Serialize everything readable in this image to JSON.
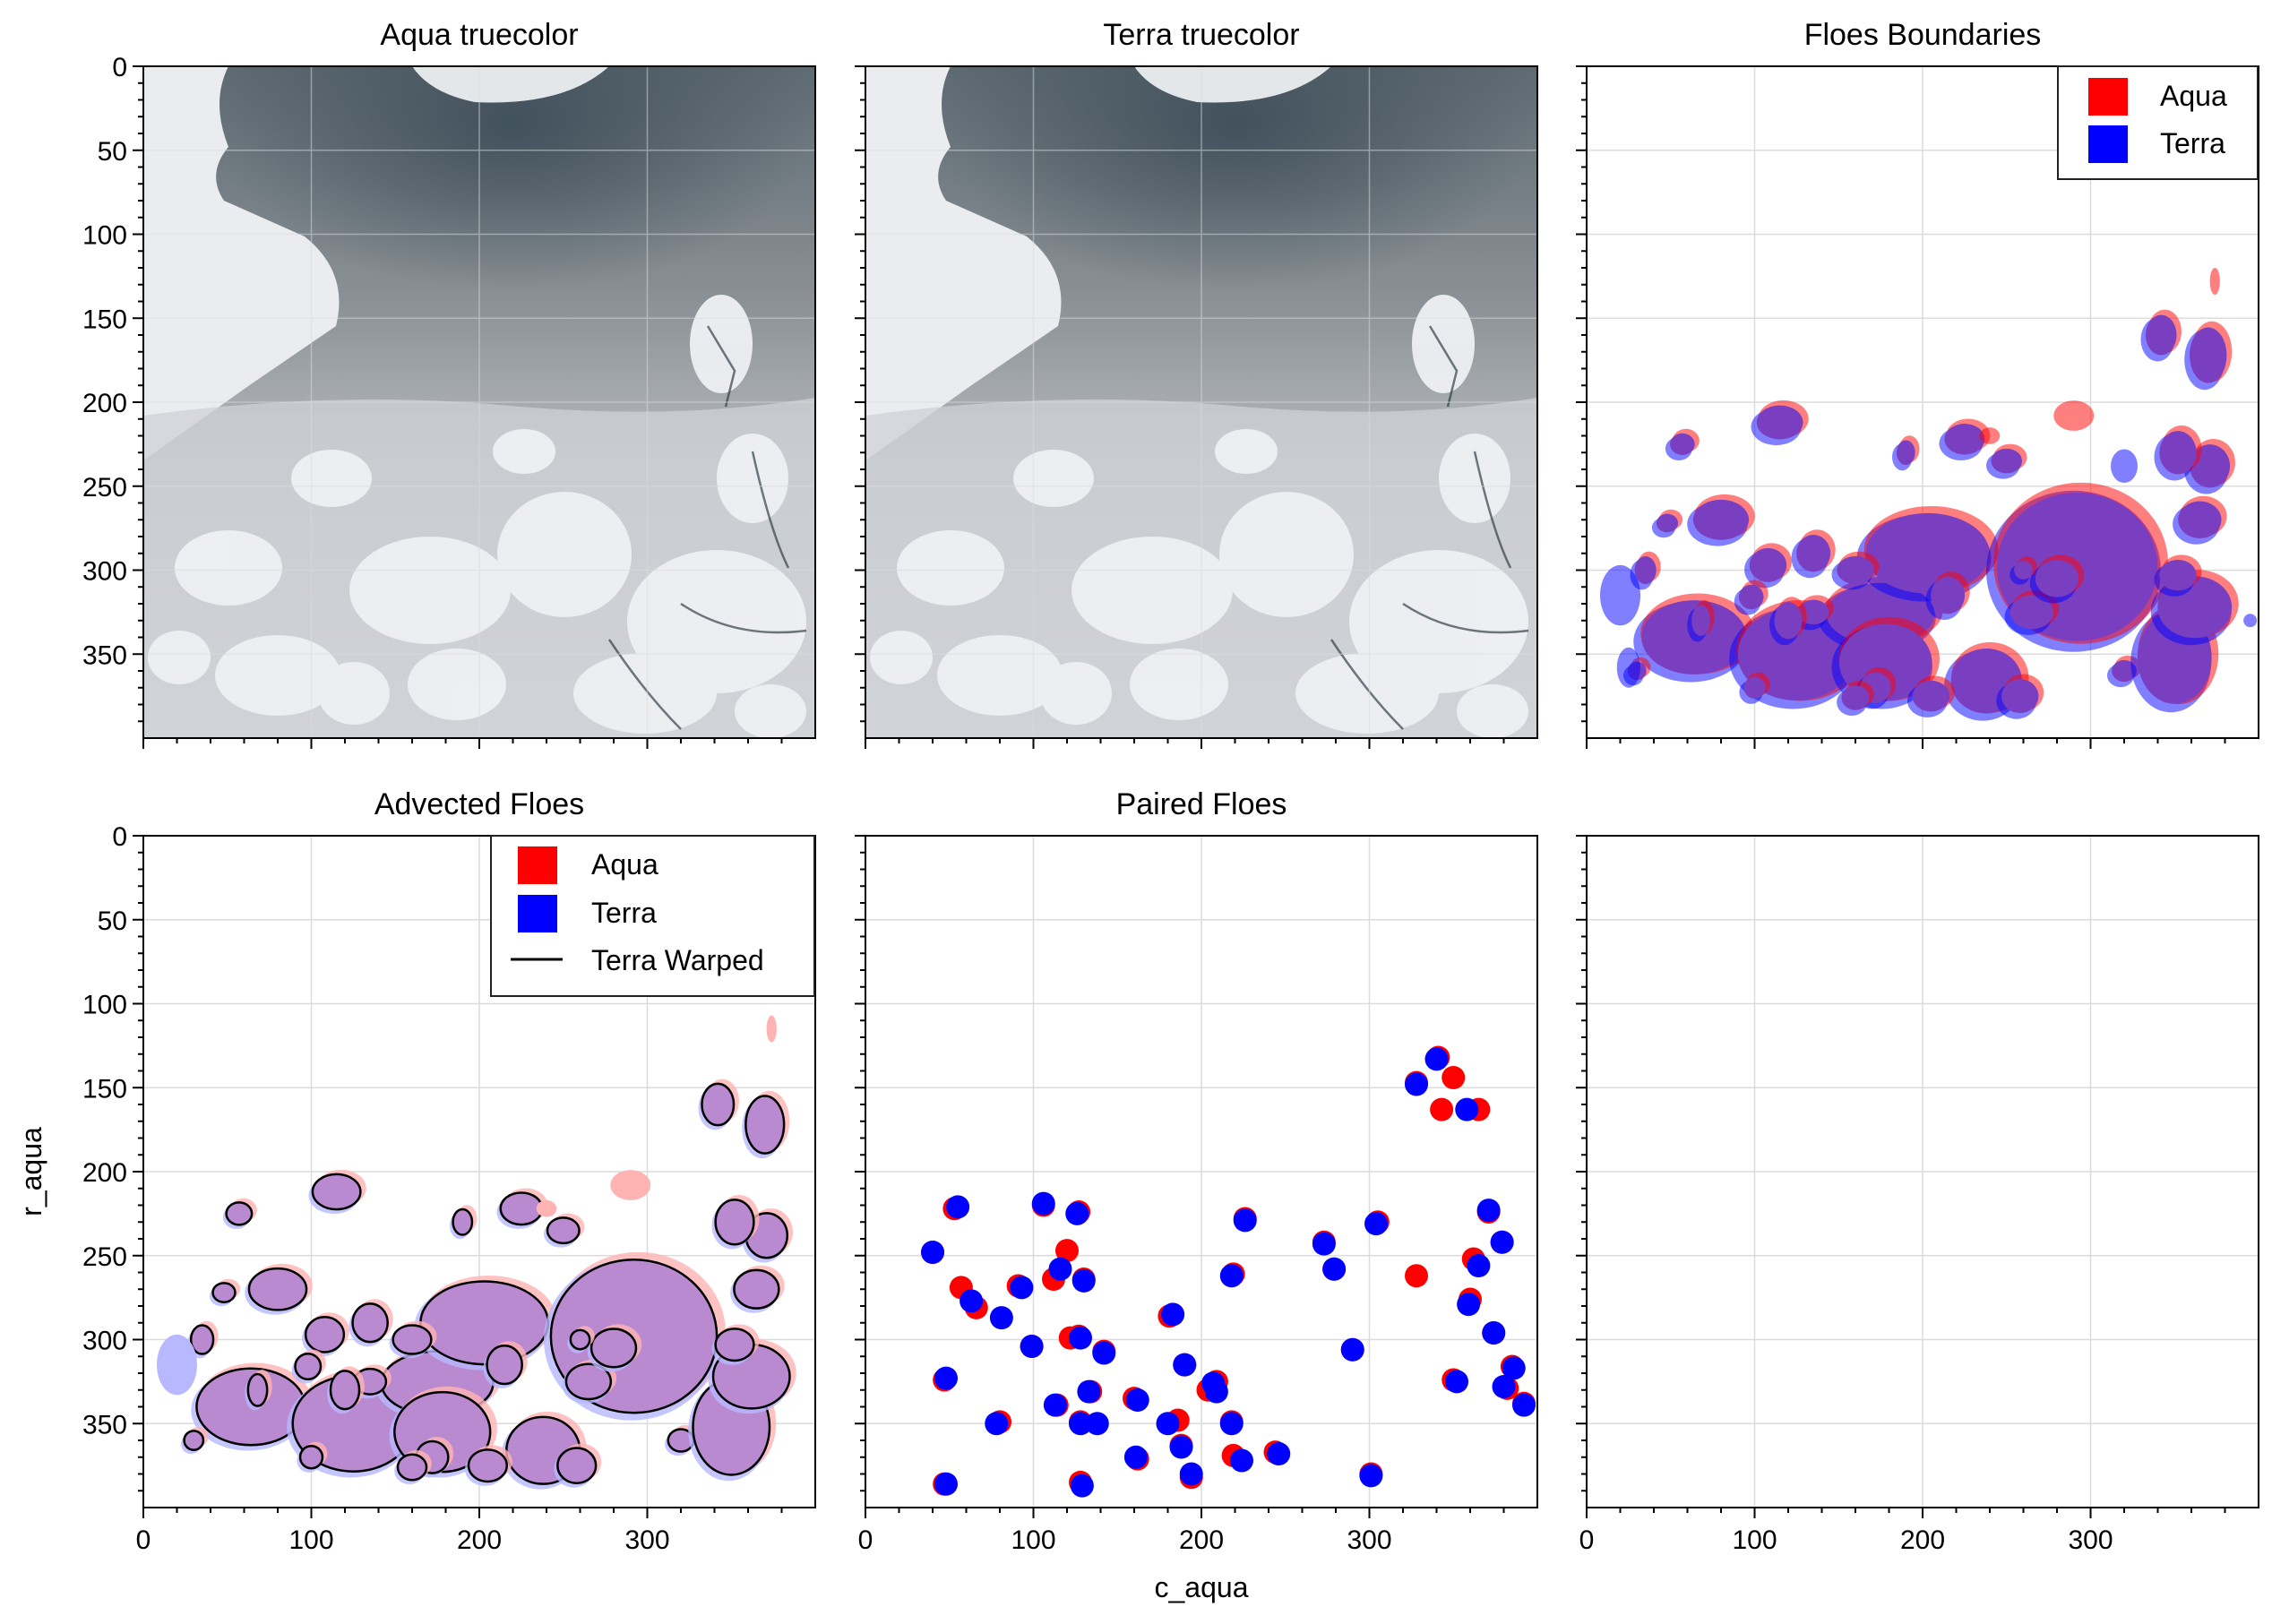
{
  "figure": {
    "xlabel": "c_aqua",
    "ylabel": "r_aqua"
  },
  "colors": {
    "aqua": "#ff0000",
    "terra": "#0000ff",
    "mix": "#7a3fc0",
    "advected": "#b98ad0",
    "grid": "#dcdcdc"
  },
  "chart_data": [
    {
      "type": "image",
      "title": "Aqua truecolor",
      "xlim": [
        0,
        400
      ],
      "ylim": [
        400,
        0
      ],
      "yticks": [
        0,
        50,
        100,
        150,
        200,
        250,
        300,
        350
      ],
      "grid": true
    },
    {
      "type": "image",
      "title": "Terra truecolor",
      "xlim": [
        0,
        400
      ],
      "ylim": [
        400,
        0
      ],
      "grid": true
    },
    {
      "type": "image",
      "title": "Floes Boundaries",
      "legend": [
        "Aqua",
        "Terra"
      ],
      "legend_position": "top-right",
      "grid": true
    },
    {
      "type": "image",
      "title": "Advected Floes",
      "xticks": [
        0,
        100,
        200,
        300
      ],
      "yticks": [
        0,
        50,
        100,
        150,
        200,
        250,
        300,
        350
      ],
      "legend": [
        "Aqua",
        "Terra",
        "Terra Warped"
      ],
      "legend_position": "top-right",
      "grid": true
    },
    {
      "type": "scatter",
      "title": "Paired Floes",
      "xlim": [
        0,
        400
      ],
      "ylim": [
        400,
        0
      ],
      "xticks": [
        0,
        100,
        200,
        300
      ],
      "grid": true,
      "series": [
        {
          "name": "Aqua",
          "color": "#ff0000",
          "points": [
            [
              40,
              248
            ],
            [
              57,
              269
            ],
            [
              66,
              281
            ],
            [
              53,
              222
            ],
            [
              91,
              268
            ],
            [
              99,
              304
            ],
            [
              106,
              220
            ],
            [
              112,
              264
            ],
            [
              120,
              247
            ],
            [
              127,
              224
            ],
            [
              127,
              298
            ],
            [
              130,
              264
            ],
            [
              122,
              299
            ],
            [
              114,
              339
            ],
            [
              134,
              331
            ],
            [
              128,
              349
            ],
            [
              128,
              385
            ],
            [
              142,
              307
            ],
            [
              80,
              349
            ],
            [
              47,
              324
            ],
            [
              47,
              386
            ],
            [
              160,
              335
            ],
            [
              162,
              371
            ],
            [
              181,
              286
            ],
            [
              186,
              348
            ],
            [
              188,
              363
            ],
            [
              190,
              315
            ],
            [
              194,
              382
            ],
            [
              204,
              330
            ],
            [
              209,
              325
            ],
            [
              218,
              349
            ],
            [
              219,
              369
            ],
            [
              219,
              261
            ],
            [
              226,
              228
            ],
            [
              244,
              367
            ],
            [
              273,
              242
            ],
            [
              279,
              258
            ],
            [
              290,
              306
            ],
            [
              301,
              380
            ],
            [
              305,
              230
            ],
            [
              328,
              147
            ],
            [
              328,
              262
            ],
            [
              341,
              132
            ],
            [
              343,
              163
            ],
            [
              350,
              144
            ],
            [
              350,
              324
            ],
            [
              360,
              276
            ],
            [
              362,
              252
            ],
            [
              365,
              163
            ],
            [
              371,
              224
            ],
            [
              374,
              296
            ],
            [
              379,
              242
            ],
            [
              382,
              329
            ],
            [
              385,
              316
            ],
            [
              392,
              338
            ]
          ]
        },
        {
          "name": "Terra",
          "color": "#0000ff",
          "points": [
            [
              40,
              248
            ],
            [
              55,
              221
            ],
            [
              63,
              277
            ],
            [
              78,
              350
            ],
            [
              81,
              287
            ],
            [
              93,
              269
            ],
            [
              99,
              304
            ],
            [
              106,
              219
            ],
            [
              116,
              258
            ],
            [
              113,
              339
            ],
            [
              126,
              225
            ],
            [
              128,
              299
            ],
            [
              128,
              350
            ],
            [
              129,
              387
            ],
            [
              130,
              265
            ],
            [
              133,
              331
            ],
            [
              142,
              308
            ],
            [
              162,
              336
            ],
            [
              161,
              370
            ],
            [
              183,
              285
            ],
            [
              180,
              350
            ],
            [
              188,
              364
            ],
            [
              190,
              315
            ],
            [
              194,
              380
            ],
            [
              207,
              326
            ],
            [
              209,
              331
            ],
            [
              218,
              350
            ],
            [
              218,
              262
            ],
            [
              224,
              372
            ],
            [
              226,
              229
            ],
            [
              246,
              368
            ],
            [
              273,
              243
            ],
            [
              279,
              258
            ],
            [
              290,
              306
            ],
            [
              301,
              381
            ],
            [
              304,
              231
            ],
            [
              328,
              148
            ],
            [
              340,
              133
            ],
            [
              352,
              325
            ],
            [
              358,
              163
            ],
            [
              359,
              279
            ],
            [
              365,
              256
            ],
            [
              371,
              223
            ],
            [
              374,
              296
            ],
            [
              379,
              242
            ],
            [
              380,
              328
            ],
            [
              386,
              317
            ],
            [
              392,
              339
            ],
            [
              48,
              386
            ],
            [
              48,
              323
            ],
            [
              138,
              350
            ]
          ]
        }
      ]
    },
    {
      "type": "empty",
      "xticks": [
        0,
        100,
        200,
        300
      ],
      "grid": true
    }
  ]
}
